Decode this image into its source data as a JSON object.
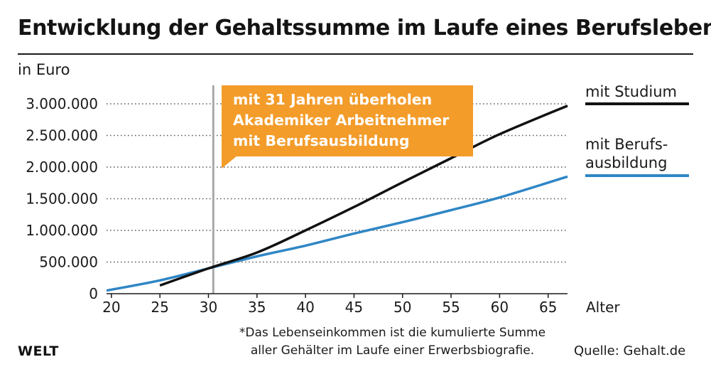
{
  "chart_data": {
    "type": "line",
    "title": "Entwicklung der Gehaltssumme im Laufe eines Berufslebens*",
    "ylabel": "in Euro",
    "xlabel": "Alter",
    "xlim": [
      19.5,
      67
    ],
    "ylim": [
      0,
      3000000
    ],
    "x_ticks": [
      "20",
      "25",
      "30",
      "35",
      "40",
      "45",
      "50",
      "55",
      "60",
      "65"
    ],
    "y_ticks": [
      "0",
      "500.000",
      "1.000.000",
      "1.500.000",
      "2.000.000",
      "2.500.000",
      "3.000.000"
    ],
    "grid": "horizontal dotted",
    "legend_position": "right",
    "series": [
      {
        "name": "mit Studium",
        "color": "#111111",
        "x": [
          25,
          30,
          35,
          40,
          45,
          50,
          55,
          60,
          67
        ],
        "y": [
          130000,
          400000,
          650000,
          1000000,
          1370000,
          1760000,
          2140000,
          2520000,
          2970000
        ]
      },
      {
        "name": "mit Berufsausbildung",
        "color": "#2f86c5",
        "x": [
          19.5,
          25,
          30,
          35,
          40,
          45,
          50,
          55,
          60,
          67
        ],
        "y": [
          50000,
          210000,
          400000,
          590000,
          760000,
          950000,
          1130000,
          1320000,
          1520000,
          1850000
        ]
      }
    ],
    "marker_x": 30.5,
    "marker_color": "#a8a8a8",
    "annotation_color": "#f39c2a"
  },
  "legend": {
    "studium_label": "mit Studium",
    "ausbildung_line1": "mit Berufs-",
    "ausbildung_line2": "ausbildung"
  },
  "annotation": {
    "line1_pre": "mit ",
    "line1_bold": "31",
    "line1_post": " Jahren überholen",
    "line2": "Akademiker Arbeitnehmer",
    "line3": "mit Berufsausbildung"
  },
  "footnote": {
    "line1": "*Das Lebenseinkommen ist die kumulierte Summe",
    "line2": "aller Gehälter im Laufe einer Erwerbsbiografie."
  },
  "brand": "WELT",
  "source": "Quelle: Gehalt.de"
}
